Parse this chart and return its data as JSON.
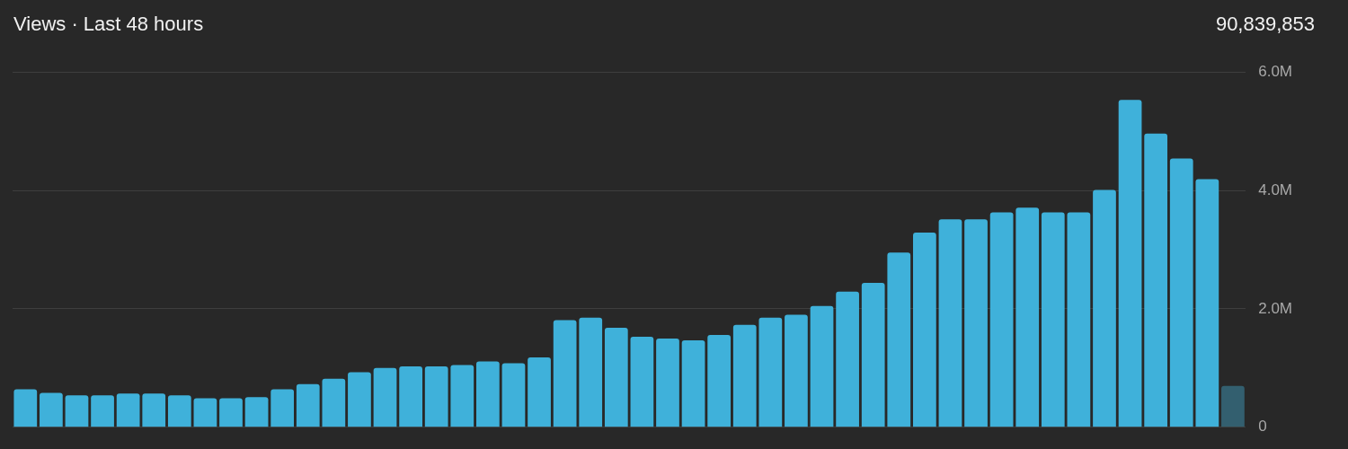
{
  "chart_data": {
    "type": "bar",
    "title": "Views · Last 48 hours",
    "annotations": [
      "90,839,853"
    ],
    "categories": [
      null,
      null,
      null,
      null,
      null,
      null,
      null,
      null,
      null,
      null,
      null,
      null,
      null,
      null,
      null,
      null,
      null,
      null,
      null,
      null,
      null,
      null,
      null,
      null,
      null,
      null,
      null,
      null,
      null,
      null,
      null,
      null,
      null,
      null,
      null,
      null,
      null,
      null,
      null,
      null,
      null,
      null,
      null,
      null,
      null,
      null,
      null,
      null
    ],
    "values": [
      640000,
      580000,
      540000,
      540000,
      570000,
      570000,
      540000,
      490000,
      490000,
      510000,
      640000,
      730000,
      820000,
      930000,
      1000000,
      1030000,
      1030000,
      1050000,
      1110000,
      1080000,
      1180000,
      1810000,
      1850000,
      1680000,
      1530000,
      1500000,
      1470000,
      1560000,
      1730000,
      1850000,
      1900000,
      2050000,
      2290000,
      2440000,
      2950000,
      3290000,
      3510000,
      3510000,
      3630000,
      3710000,
      3630000,
      3630000,
      4010000,
      5530000,
      4960000,
      4540000,
      4190000,
      700000
    ],
    "colors": [
      "#3fb1da",
      "#3fb1da",
      "#3fb1da",
      "#3fb1da",
      "#3fb1da",
      "#3fb1da",
      "#3fb1da",
      "#3fb1da",
      "#3fb1da",
      "#3fb1da",
      "#3fb1da",
      "#3fb1da",
      "#3fb1da",
      "#3fb1da",
      "#3fb1da",
      "#3fb1da",
      "#3fb1da",
      "#3fb1da",
      "#3fb1da",
      "#3fb1da",
      "#3fb1da",
      "#3fb1da",
      "#3fb1da",
      "#3fb1da",
      "#3fb1da",
      "#3fb1da",
      "#3fb1da",
      "#3fb1da",
      "#3fb1da",
      "#3fb1da",
      "#3fb1da",
      "#3fb1da",
      "#3fb1da",
      "#3fb1da",
      "#3fb1da",
      "#3fb1da",
      "#3fb1da",
      "#3fb1da",
      "#3fb1da",
      "#3fb1da",
      "#3fb1da",
      "#3fb1da",
      "#3fb1da",
      "#3fb1da",
      "#3fb1da",
      "#3fb1da",
      "#3fb1da",
      "#335f6f"
    ],
    "ylim": [
      0,
      6000000
    ],
    "yticks": [
      0,
      {
        "value": 2000000,
        "label": "2.0M"
      },
      {
        "value": 4000000,
        "label": "4.0M"
      },
      {
        "value": 6000000,
        "label": "6.0M"
      }
    ],
    "grid": "y",
    "tick_labels": "y"
  }
}
